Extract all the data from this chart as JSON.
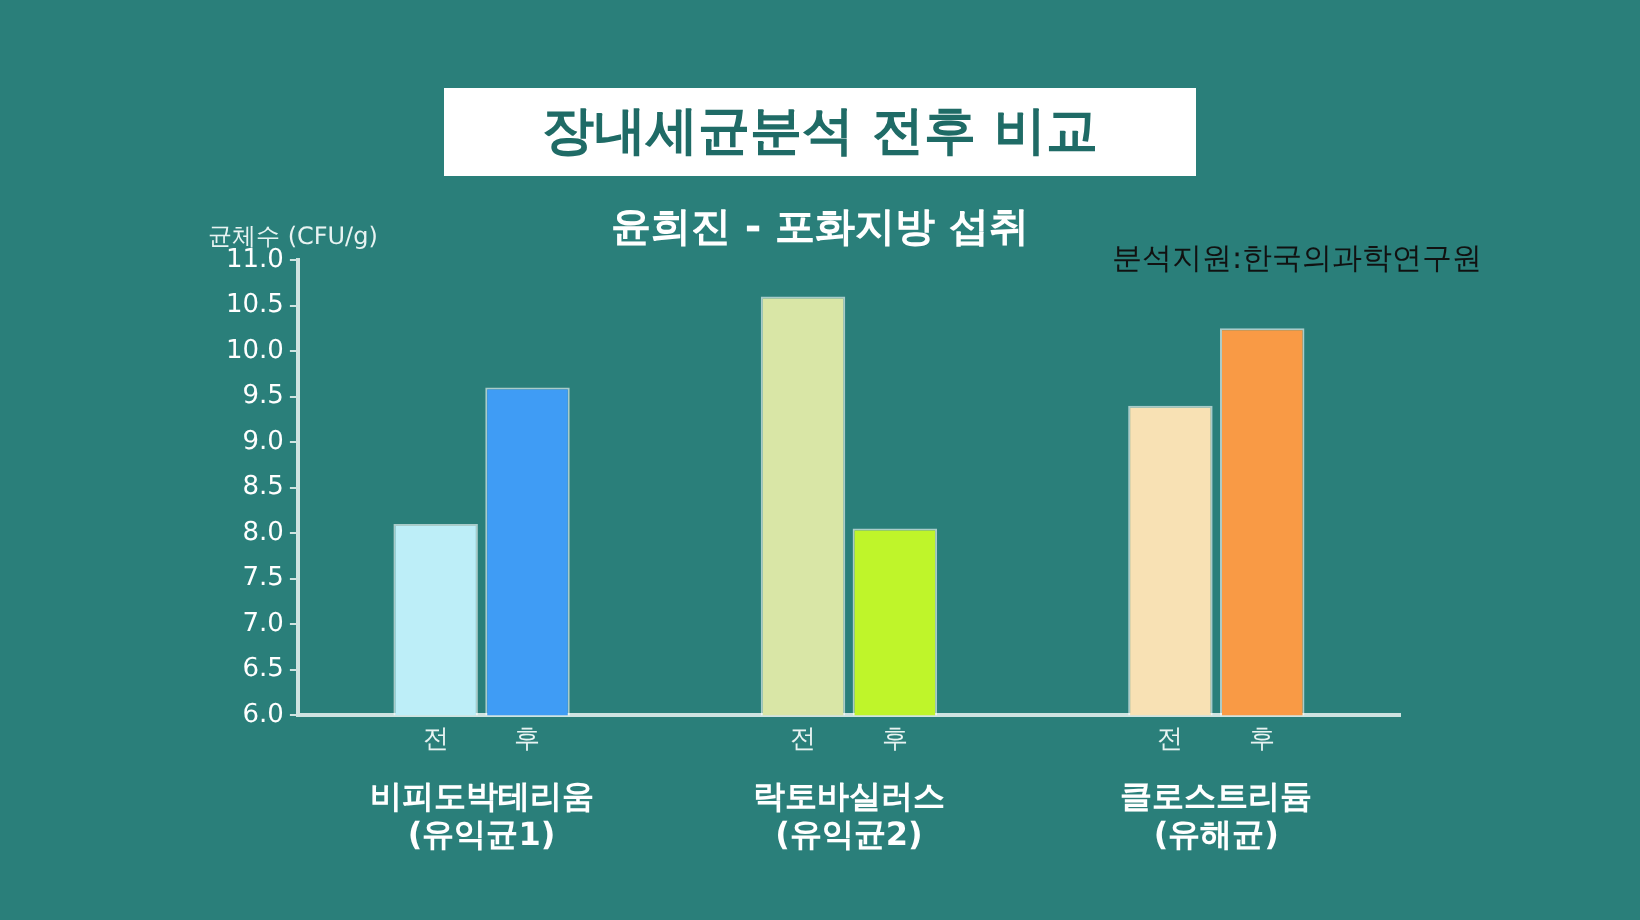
{
  "chart_data": {
    "type": "bar",
    "title": "장내세균분석 전후 비교",
    "subtitle": "윤희진 - 포화지방 섭취",
    "ylabel": "균체수 (CFU/g)",
    "annotations": [
      "분석지원:한국의과학연구원"
    ],
    "categories": [
      "비피도박테리움\n(유익균1)",
      "락토바실러스\n(유익균2)",
      "클로스트리듐\n(유해균)"
    ],
    "series": [
      {
        "name": "전",
        "colors": [
          "#bdeef8",
          "#d9e6a6",
          "#f8e1b4"
        ],
        "values": [
          8.1,
          10.6,
          9.4
        ]
      },
      {
        "name": "후",
        "colors": [
          "#3f9cf5",
          "#bff52a",
          "#f99a45"
        ],
        "values": [
          9.6,
          8.05,
          10.25
        ]
      }
    ],
    "ylim": [
      6,
      11
    ],
    "yticks": [
      {
        "value": 6,
        "label": "6.0"
      },
      {
        "value": 6.5,
        "label": "6.5"
      },
      {
        "value": 7,
        "label": "7.0"
      },
      {
        "value": 7.5,
        "label": "7.5"
      },
      {
        "value": 8,
        "label": "8.0"
      },
      {
        "value": 8.5,
        "label": "8.5"
      },
      {
        "value": 9,
        "label": "9.0"
      },
      {
        "value": 9.5,
        "label": "9.5"
      },
      {
        "value": 10,
        "label": "10.0"
      },
      {
        "value": 10.5,
        "label": "10.5"
      },
      {
        "value": 11,
        "label": "11.0"
      }
    ],
    "grid": false,
    "legend": false
  }
}
